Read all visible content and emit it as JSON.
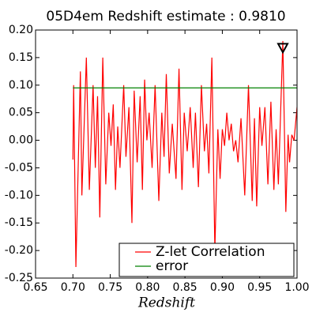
{
  "chart_data": {
    "type": "line",
    "title": "05D4em Redshift estimate : 0.9810",
    "xlabel": "Redshift",
    "x": [
      0.7,
      0.701,
      0.704,
      0.71,
      0.712,
      0.718,
      0.722,
      0.727,
      0.73,
      0.733,
      0.736,
      0.74,
      0.744,
      0.748,
      0.751,
      0.754,
      0.757,
      0.76,
      0.763,
      0.768,
      0.771,
      0.775,
      0.779,
      0.782,
      0.786,
      0.79,
      0.793,
      0.796,
      0.799,
      0.802,
      0.806,
      0.81,
      0.815,
      0.819,
      0.822,
      0.825,
      0.829,
      0.833,
      0.838,
      0.842,
      0.846,
      0.849,
      0.853,
      0.857,
      0.861,
      0.864,
      0.868,
      0.872,
      0.876,
      0.879,
      0.882,
      0.886,
      0.89,
      0.894,
      0.897,
      0.9,
      0.903,
      0.906,
      0.909,
      0.912,
      0.915,
      0.918,
      0.921,
      0.925,
      0.93,
      0.935,
      0.94,
      0.943,
      0.946,
      0.95,
      0.953,
      0.957,
      0.961,
      0.965,
      0.969,
      0.972,
      0.975,
      0.981,
      0.985,
      0.988,
      0.99,
      0.993,
      0.996,
      1.0
    ],
    "series": [
      {
        "name": "Z-let Correlation",
        "color": "#ff0000",
        "values": [
          -0.035,
          0.1,
          -0.23,
          0.125,
          -0.1,
          0.15,
          -0.09,
          0.1,
          -0.05,
          0.08,
          -0.14,
          0.15,
          -0.08,
          0.05,
          -0.01,
          0.065,
          -0.09,
          0.025,
          -0.05,
          0.1,
          -0.03,
          0.06,
          -0.15,
          0.09,
          -0.04,
          0.08,
          -0.09,
          0.11,
          0.0,
          0.05,
          -0.05,
          0.1,
          -0.11,
          0.05,
          -0.03,
          0.12,
          -0.06,
          0.03,
          -0.07,
          0.13,
          -0.09,
          0.05,
          -0.02,
          0.06,
          -0.05,
          0.05,
          -0.085,
          0.1,
          -0.02,
          0.03,
          -0.06,
          0.15,
          -0.2,
          0.02,
          -0.07,
          0.02,
          -0.01,
          0.05,
          0.0,
          0.03,
          -0.02,
          0.0,
          -0.04,
          0.04,
          -0.1,
          0.1,
          -0.11,
          0.04,
          -0.12,
          0.06,
          -0.01,
          0.06,
          -0.08,
          0.07,
          -0.09,
          0.02,
          -0.08,
          0.18,
          -0.13,
          0.01,
          -0.04,
          0.01,
          0.0,
          0.06
        ]
      },
      {
        "name": "error",
        "color": "#008000",
        "values": [
          0.095,
          0.095,
          0.095,
          0.095,
          0.095,
          0.095,
          0.095,
          0.095,
          0.095,
          0.095,
          0.095,
          0.095,
          0.095,
          0.095,
          0.095,
          0.095,
          0.095,
          0.095,
          0.095,
          0.095,
          0.095,
          0.095,
          0.095,
          0.095,
          0.095,
          0.095,
          0.095,
          0.095,
          0.095,
          0.095,
          0.095,
          0.095,
          0.095,
          0.095,
          0.095,
          0.095,
          0.095,
          0.095,
          0.095,
          0.095,
          0.095,
          0.095,
          0.095,
          0.095,
          0.095,
          0.095,
          0.095,
          0.095,
          0.095,
          0.095,
          0.095,
          0.095,
          0.095,
          0.095,
          0.095,
          0.095,
          0.095,
          0.095,
          0.095,
          0.095,
          0.095,
          0.095,
          0.095,
          0.095,
          0.095,
          0.095,
          0.095,
          0.095,
          0.095,
          0.095,
          0.095,
          0.095,
          0.095,
          0.095,
          0.095,
          0.095,
          0.095,
          0.095,
          0.095,
          0.095,
          0.095,
          0.095,
          0.095,
          0.095
        ]
      }
    ],
    "marker": {
      "x": 0.981,
      "y": 0.168
    },
    "xlim": [
      0.65,
      1.0
    ],
    "ylim": [
      -0.25,
      0.2
    ],
    "xticks": [
      0.65,
      {
        "value": 0.7,
        "label": "0.70"
      },
      0.75,
      {
        "value": 0.8,
        "label": "0.80"
      },
      0.85,
      {
        "value": 0.9,
        "label": "0.90"
      },
      0.95,
      {
        "value": 1.0,
        "label": "1.00"
      }
    ],
    "yticks": [
      -0.25,
      {
        "value": -0.2,
        "label": "-0.20"
      },
      -0.15,
      {
        "value": -0.1,
        "label": "-0.10"
      },
      -0.05,
      {
        "value": 0,
        "label": "0.00"
      },
      0.05,
      {
        "value": 0.1,
        "label": "0.10"
      },
      0.15,
      {
        "value": 0.2,
        "label": "0.20"
      }
    ],
    "legend": "lower right"
  }
}
